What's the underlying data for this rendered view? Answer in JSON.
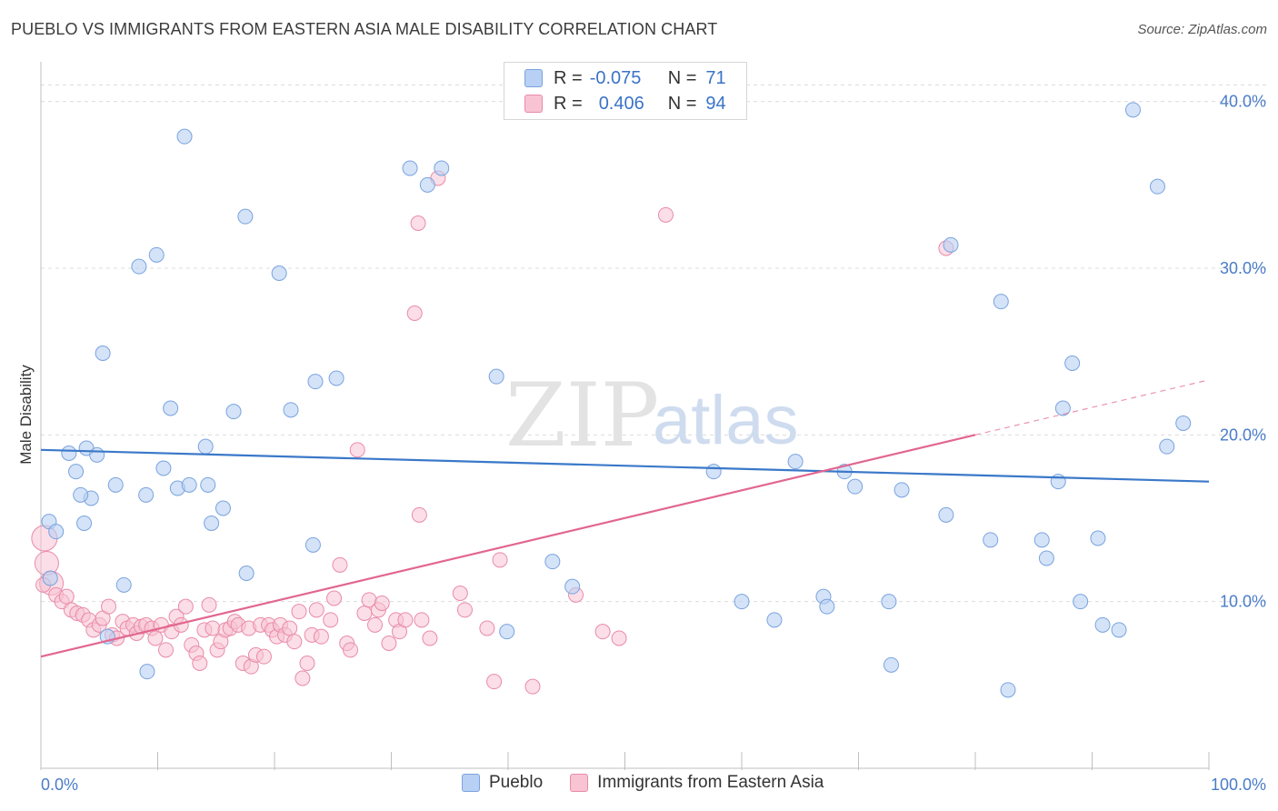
{
  "title": "PUEBLO VS IMMIGRANTS FROM EASTERN ASIA MALE DISABILITY CORRELATION CHART",
  "source": "Source: ZipAtlas.com",
  "watermark": {
    "zip": "ZIP",
    "atlas": "atlas"
  },
  "legend": {
    "rows": [
      {
        "r_label": "R =",
        "r_value": "-0.075",
        "n_label": "N =",
        "n_value": "71"
      },
      {
        "r_label": "R =",
        "r_value": "0.406",
        "n_label": "N =",
        "n_value": "94"
      }
    ]
  },
  "bottom_legend": {
    "series1": "Pueblo",
    "series2": "Immigrants from Eastern Asia"
  },
  "colors": {
    "pueblo_fill": "#b8d0f4",
    "pueblo_stroke": "#7aa3de",
    "pueblo_line": "#3a78c9",
    "asia_fill": "#f8c3d3",
    "asia_stroke": "#e98ba9",
    "asia_line": "#e2668f",
    "grid": "#dcdcdc",
    "tick_text": "#4a7cc7"
  },
  "chart_data": {
    "type": "scatter",
    "title": "PUEBLO VS IMMIGRANTS FROM EASTERN ASIA MALE DISABILITY CORRELATION CHART",
    "xlabel": "",
    "ylabel": "Male Disability",
    "xlim": [
      0,
      100
    ],
    "ylim": [
      0,
      42
    ],
    "x_tick_labels": [
      "0.0%",
      "100.0%"
    ],
    "y_ticks": [
      10,
      20,
      30,
      40
    ],
    "y_tick_labels": [
      "10.0%",
      "20.0%",
      "30.0%",
      "40.0%"
    ],
    "grid": "horizontal dashed",
    "series": [
      {
        "name": "Pueblo",
        "r": -0.075,
        "n": 71,
        "trend": {
          "x": [
            0,
            100
          ],
          "y": [
            19.1,
            17.2
          ]
        },
        "points": [
          [
            0.7,
            14.8
          ],
          [
            1.3,
            14.2
          ],
          [
            0.8,
            11.4
          ],
          [
            2.4,
            18.9
          ],
          [
            3.0,
            17.8
          ],
          [
            3.7,
            14.7
          ],
          [
            3.9,
            19.2
          ],
          [
            4.3,
            16.2
          ],
          [
            4.8,
            18.8
          ],
          [
            5.3,
            24.9
          ],
          [
            5.7,
            7.9
          ],
          [
            6.4,
            17.0
          ],
          [
            7.1,
            11.0
          ],
          [
            8.4,
            30.1
          ],
          [
            9.0,
            16.4
          ],
          [
            9.9,
            30.8
          ],
          [
            10.5,
            18.0
          ],
          [
            11.1,
            21.6
          ],
          [
            11.7,
            16.8
          ],
          [
            12.3,
            37.9
          ],
          [
            12.7,
            17.0
          ],
          [
            14.1,
            19.3
          ],
          [
            14.3,
            17.0
          ],
          [
            14.6,
            14.7
          ],
          [
            15.6,
            15.6
          ],
          [
            16.5,
            21.4
          ],
          [
            17.5,
            33.1
          ],
          [
            17.6,
            11.7
          ],
          [
            20.4,
            29.7
          ],
          [
            21.4,
            21.5
          ],
          [
            23.3,
            13.4
          ],
          [
            23.5,
            23.2
          ],
          [
            25.3,
            23.4
          ],
          [
            9.1,
            5.8
          ],
          [
            31.6,
            36.0
          ],
          [
            33.1,
            35.0
          ],
          [
            34.3,
            36.0
          ],
          [
            39.0,
            23.5
          ],
          [
            39.9,
            8.2
          ],
          [
            43.8,
            12.4
          ],
          [
            45.5,
            10.9
          ],
          [
            3.4,
            16.4
          ],
          [
            57.6,
            17.8
          ],
          [
            60.0,
            10.0
          ],
          [
            62.8,
            8.9
          ],
          [
            64.6,
            18.4
          ],
          [
            67.0,
            10.3
          ],
          [
            67.3,
            9.7
          ],
          [
            68.8,
            17.8
          ],
          [
            69.7,
            16.9
          ],
          [
            72.6,
            10.0
          ],
          [
            72.8,
            6.2
          ],
          [
            73.7,
            16.7
          ],
          [
            77.5,
            15.2
          ],
          [
            77.9,
            31.4
          ],
          [
            81.3,
            13.7
          ],
          [
            82.2,
            28.0
          ],
          [
            82.8,
            4.7
          ],
          [
            85.7,
            13.7
          ],
          [
            86.1,
            12.6
          ],
          [
            87.1,
            17.2
          ],
          [
            87.5,
            21.6
          ],
          [
            88.3,
            24.3
          ],
          [
            89.0,
            10.0
          ],
          [
            90.5,
            13.8
          ],
          [
            90.9,
            8.6
          ],
          [
            92.3,
            8.3
          ],
          [
            93.5,
            39.5
          ],
          [
            95.6,
            34.9
          ],
          [
            96.4,
            19.3
          ],
          [
            97.8,
            20.7
          ]
        ]
      },
      {
        "name": "Immigrants from Eastern Asia",
        "r": 0.406,
        "n": 94,
        "trend": {
          "x": [
            0,
            80
          ],
          "y": [
            6.7,
            20.0
          ]
        },
        "trend_dashed": {
          "x": [
            80,
            100
          ],
          "y": [
            20.0,
            23.3
          ]
        },
        "points": [
          [
            0.3,
            13.8
          ],
          [
            0.5,
            12.3
          ],
          [
            0.9,
            11.1
          ],
          [
            1.3,
            10.4
          ],
          [
            1.8,
            10.0
          ],
          [
            2.2,
            10.3
          ],
          [
            2.6,
            9.5
          ],
          [
            3.1,
            9.3
          ],
          [
            3.6,
            9.2
          ],
          [
            4.1,
            8.9
          ],
          [
            4.5,
            8.3
          ],
          [
            5.0,
            8.6
          ],
          [
            5.3,
            9.0
          ],
          [
            5.8,
            9.7
          ],
          [
            6.1,
            8.0
          ],
          [
            6.5,
            7.8
          ],
          [
            7.0,
            8.8
          ],
          [
            7.4,
            8.4
          ],
          [
            7.9,
            8.6
          ],
          [
            8.2,
            8.1
          ],
          [
            8.6,
            8.5
          ],
          [
            9.0,
            8.6
          ],
          [
            9.5,
            8.4
          ],
          [
            9.8,
            7.8
          ],
          [
            10.3,
            8.6
          ],
          [
            10.7,
            7.1
          ],
          [
            11.2,
            8.2
          ],
          [
            11.6,
            9.1
          ],
          [
            12.0,
            8.6
          ],
          [
            12.4,
            9.7
          ],
          [
            12.9,
            7.4
          ],
          [
            13.3,
            6.9
          ],
          [
            13.6,
            6.3
          ],
          [
            14.0,
            8.3
          ],
          [
            14.4,
            9.8
          ],
          [
            14.7,
            8.4
          ],
          [
            15.1,
            7.1
          ],
          [
            15.4,
            7.6
          ],
          [
            15.8,
            8.3
          ],
          [
            16.2,
            8.4
          ],
          [
            16.6,
            8.8
          ],
          [
            16.9,
            8.6
          ],
          [
            17.3,
            6.3
          ],
          [
            17.8,
            8.4
          ],
          [
            18.0,
            6.1
          ],
          [
            18.4,
            6.8
          ],
          [
            18.8,
            8.6
          ],
          [
            19.1,
            6.7
          ],
          [
            19.5,
            8.6
          ],
          [
            19.8,
            8.3
          ],
          [
            20.2,
            7.9
          ],
          [
            20.5,
            8.6
          ],
          [
            20.9,
            8.0
          ],
          [
            21.3,
            8.4
          ],
          [
            21.7,
            7.6
          ],
          [
            22.1,
            9.4
          ],
          [
            22.4,
            5.4
          ],
          [
            22.8,
            6.3
          ],
          [
            23.2,
            8.0
          ],
          [
            23.6,
            9.5
          ],
          [
            24.0,
            7.9
          ],
          [
            24.8,
            8.9
          ],
          [
            25.1,
            10.2
          ],
          [
            25.6,
            12.2
          ],
          [
            26.2,
            7.5
          ],
          [
            26.5,
            7.1
          ],
          [
            27.1,
            19.1
          ],
          [
            27.7,
            9.3
          ],
          [
            28.1,
            10.1
          ],
          [
            28.6,
            8.6
          ],
          [
            28.9,
            9.5
          ],
          [
            29.2,
            9.9
          ],
          [
            29.8,
            7.5
          ],
          [
            30.4,
            8.9
          ],
          [
            30.7,
            8.2
          ],
          [
            31.2,
            8.9
          ],
          [
            32.0,
            27.3
          ],
          [
            32.3,
            32.7
          ],
          [
            32.4,
            15.2
          ],
          [
            32.6,
            8.9
          ],
          [
            33.3,
            7.8
          ],
          [
            34.0,
            35.4
          ],
          [
            35.9,
            10.5
          ],
          [
            36.3,
            9.5
          ],
          [
            38.2,
            8.4
          ],
          [
            38.8,
            5.2
          ],
          [
            39.3,
            12.5
          ],
          [
            42.1,
            4.9
          ],
          [
            45.8,
            10.4
          ],
          [
            48.1,
            8.2
          ],
          [
            49.5,
            7.8
          ],
          [
            53.5,
            33.2
          ],
          [
            77.5,
            31.2
          ],
          [
            0.2,
            11.0
          ]
        ]
      }
    ]
  }
}
